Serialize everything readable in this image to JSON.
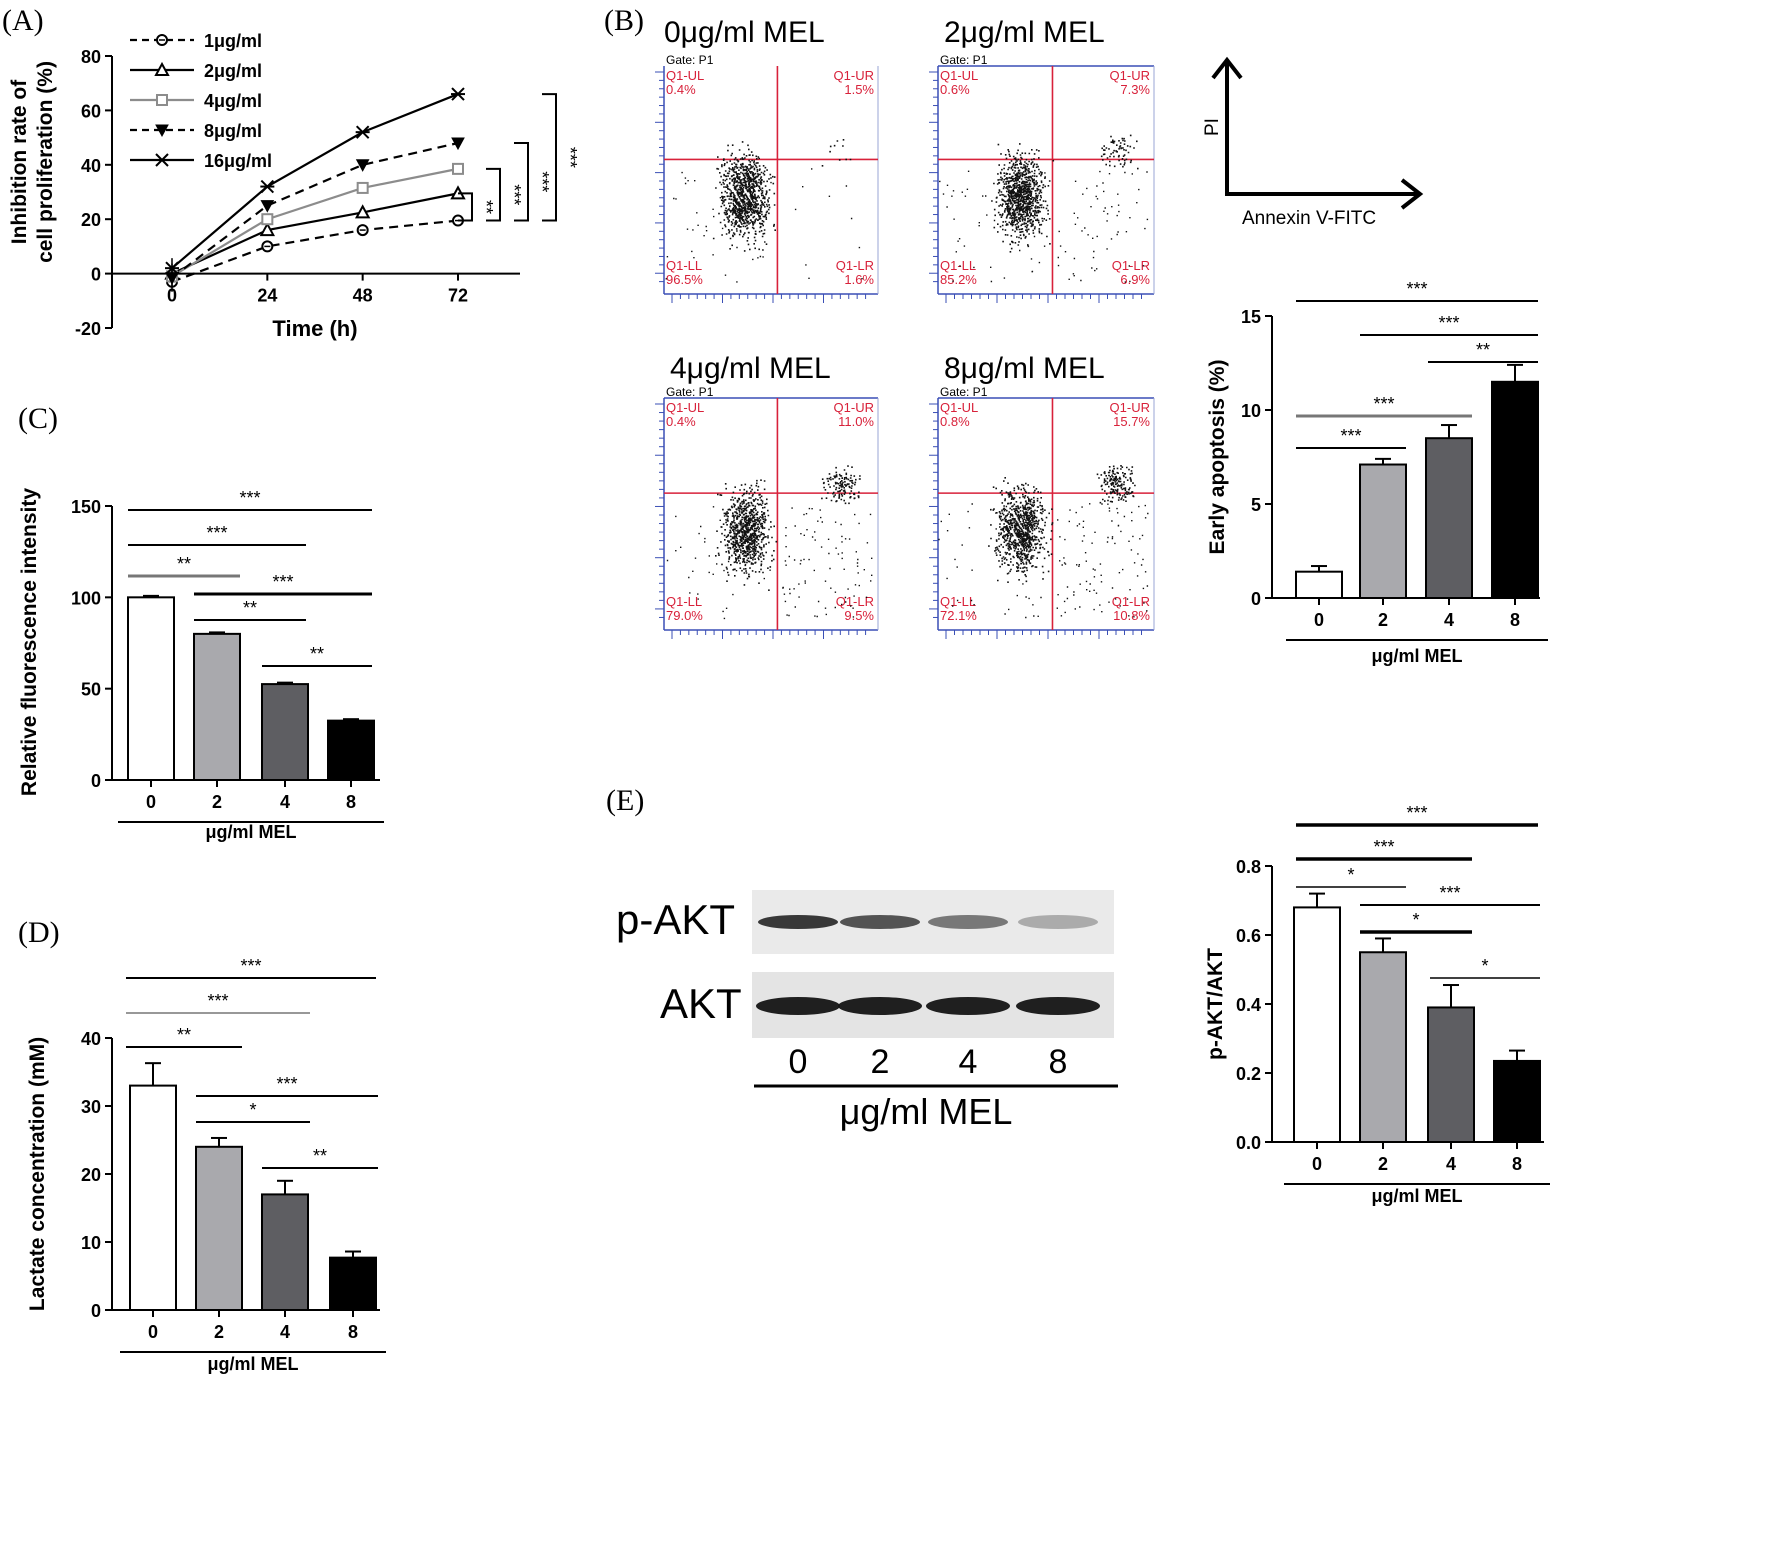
{
  "panel_labels": {
    "a": "(A)",
    "b": "(B)",
    "c": "(C)",
    "d": "(D)",
    "e": "(E)"
  },
  "colors": {
    "white": "#ffffff",
    "light": "#a9a9ad",
    "dark": "#5e5e62",
    "black": "#000000",
    "red": "#d8213a",
    "blue": "#3a4fb5"
  },
  "chart_data": [
    {
      "id": "A",
      "type": "line",
      "xlabel": "Time (h)",
      "ylabel_lines": [
        "Inhibition rate of",
        "cell proliferation (%)"
      ],
      "x": [
        0,
        24,
        48,
        72
      ],
      "xticks": [
        "0",
        "24",
        "48",
        "72"
      ],
      "yticks": [
        "-20",
        "0",
        "20",
        "40",
        "60",
        "80"
      ],
      "ylim": [
        -20,
        80
      ],
      "series": [
        {
          "name": "1μg/ml",
          "values": [
            -3,
            10,
            16,
            19.5
          ]
        },
        {
          "name": "2μg/ml",
          "values": [
            0,
            16,
            22.5,
            29.5
          ]
        },
        {
          "name": "4μg/ml",
          "values": [
            -1,
            20,
            31.5,
            38.5
          ]
        },
        {
          "name": "8μg/ml",
          "values": [
            -1.5,
            25,
            40,
            48
          ]
        },
        {
          "name": "16μg/ml",
          "values": [
            2,
            32,
            52,
            66
          ]
        }
      ],
      "significance": [
        "**",
        "***",
        "***",
        "***"
      ]
    },
    {
      "id": "B",
      "type": "bar",
      "ylabel": "Early apoptosis (%)",
      "xlabel": "μg/ml MEL",
      "categories": [
        "0",
        "2",
        "4",
        "8"
      ],
      "values": [
        1.4,
        7.1,
        8.5,
        11.5
      ],
      "errors": [
        0.3,
        0.3,
        0.7,
        0.9
      ],
      "yticks": [
        "0",
        "5",
        "10",
        "15"
      ],
      "ylim": [
        0,
        15
      ],
      "significance": [
        "***",
        "***",
        "**",
        "***",
        "***"
      ]
    },
    {
      "id": "C",
      "type": "bar",
      "ylabel": "Relative fluorescence intensity",
      "xlabel": "μg/ml MEL",
      "categories": [
        "0",
        "2",
        "4",
        "8"
      ],
      "values": [
        100,
        80,
        52.5,
        32.5
      ],
      "errors": [
        0.8,
        0.8,
        0.8,
        0.8
      ],
      "yticks": [
        "0",
        "50",
        "100",
        "150"
      ],
      "ylim": [
        0,
        150
      ],
      "significance": [
        "***",
        "***",
        "**",
        "***",
        "**",
        "**"
      ]
    },
    {
      "id": "D",
      "type": "bar",
      "ylabel": "Lactate concentration (mM)",
      "xlabel": "μg/ml MEL",
      "categories": [
        "0",
        "2",
        "4",
        "8"
      ],
      "values": [
        33,
        24,
        17,
        7.7
      ],
      "errors": [
        3.3,
        1.3,
        2.0,
        0.9
      ],
      "yticks": [
        "0",
        "10",
        "20",
        "30",
        "40"
      ],
      "ylim": [
        0,
        40
      ],
      "significance": [
        "***",
        "***",
        "**",
        "***",
        "*",
        "**"
      ]
    },
    {
      "id": "E",
      "type": "bar",
      "ylabel": "p-AKT/AKT",
      "xlabel": "μg/ml MEL",
      "categories": [
        "0",
        "2",
        "4",
        "8"
      ],
      "values": [
        0.68,
        0.55,
        0.39,
        0.235
      ],
      "errors": [
        0.04,
        0.04,
        0.065,
        0.03
      ],
      "yticks": [
        "0.0",
        "0.2",
        "0.4",
        "0.6",
        "0.8"
      ],
      "ylim": [
        0,
        0.8
      ],
      "significance": [
        "***",
        "***",
        "*",
        "***",
        "*",
        "*"
      ]
    }
  ],
  "flow": {
    "gate": "Gate: P1",
    "quadrant_codes": [
      "Q1-UL",
      "Q1-UR",
      "Q1-LL",
      "Q1-LR"
    ],
    "plots": [
      {
        "title": "0μg/ml MEL",
        "ul": "0.4%",
        "ur": "1.5%",
        "ll": "96.5%",
        "lr": "1.6%"
      },
      {
        "title": "2μg/ml MEL",
        "ul": "0.6%",
        "ur": "7.3%",
        "ll": "85.2%",
        "lr": "6.9%"
      },
      {
        "title": "4μg/ml MEL",
        "ul": "0.4%",
        "ur": "11.0%",
        "ll": "79.0%",
        "lr": "9.5%"
      },
      {
        "title": "8μg/ml MEL",
        "ul": "0.8%",
        "ur": "15.7%",
        "ll": "72.1%",
        "lr": "10.8%"
      }
    ],
    "axis_y": "PI",
    "axis_x": "Annexin V-FITC"
  },
  "western": {
    "rows": [
      "p-AKT",
      "AKT"
    ],
    "lanes": [
      "0",
      "2",
      "4",
      "8"
    ],
    "xlabel": "μg/ml MEL"
  }
}
